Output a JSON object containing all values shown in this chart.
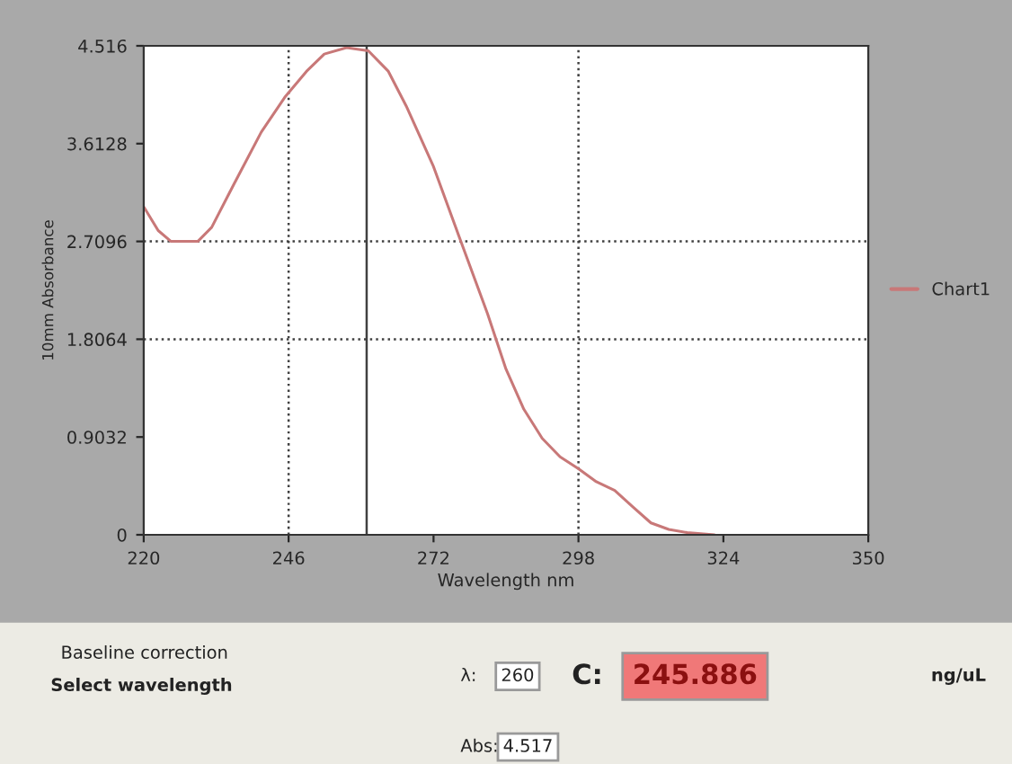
{
  "chart_data": {
    "type": "line",
    "xlabel": "Wavelength nm",
    "ylabel": "10mm Absorbance",
    "x": [
      220,
      222.6,
      224.9,
      229.7,
      232.2,
      236.2,
      241.1,
      245.3,
      249.2,
      252.4,
      256.4,
      260.3,
      263.9,
      267.1,
      272.0,
      276.9,
      281.7,
      285.0,
      288.2,
      291.5,
      294.7,
      298.0,
      301.2,
      304.5,
      307.7,
      311.0,
      314.2,
      317.5,
      322.4
    ],
    "series": [
      {
        "name": "Chart1",
        "color": "#c87878",
        "values": [
          3.03,
          2.81,
          2.71,
          2.71,
          2.84,
          3.24,
          3.72,
          4.04,
          4.28,
          4.44,
          4.5,
          4.47,
          4.28,
          3.96,
          3.4,
          2.71,
          2.04,
          1.53,
          1.16,
          0.89,
          0.72,
          0.61,
          0.49,
          0.41,
          0.26,
          0.11,
          0.05,
          0.02,
          0
        ]
      }
    ],
    "xlim": [
      220,
      350
    ],
    "xticks": [
      220,
      246,
      272,
      298,
      324,
      350
    ],
    "ylim": [
      0,
      4.516
    ],
    "yticks": [
      0,
      0.9032,
      1.8064,
      2.7096,
      3.6128,
      4.516
    ],
    "grid": false,
    "legend": "right",
    "ref_lines": [
      {
        "axis": "x",
        "value": 246,
        "line_style": "dotted",
        "color": "#404040"
      },
      {
        "axis": "x",
        "value": 260,
        "line_style": "solid",
        "color": "#404040"
      },
      {
        "axis": "x",
        "value": 298,
        "line_style": "dotted",
        "color": "#404040"
      },
      {
        "axis": "y",
        "value": 2.7096,
        "line_style": "dotted",
        "color": "#404040"
      },
      {
        "axis": "y",
        "value": 1.8064,
        "line_style": "dotted",
        "color": "#404040"
      }
    ],
    "annotations": [
      "Baseline correction",
      "Select wavelength",
      "λ:",
      "260",
      "Abs:",
      "4.517",
      "C:",
      "245.886",
      "ng/uL"
    ]
  }
}
